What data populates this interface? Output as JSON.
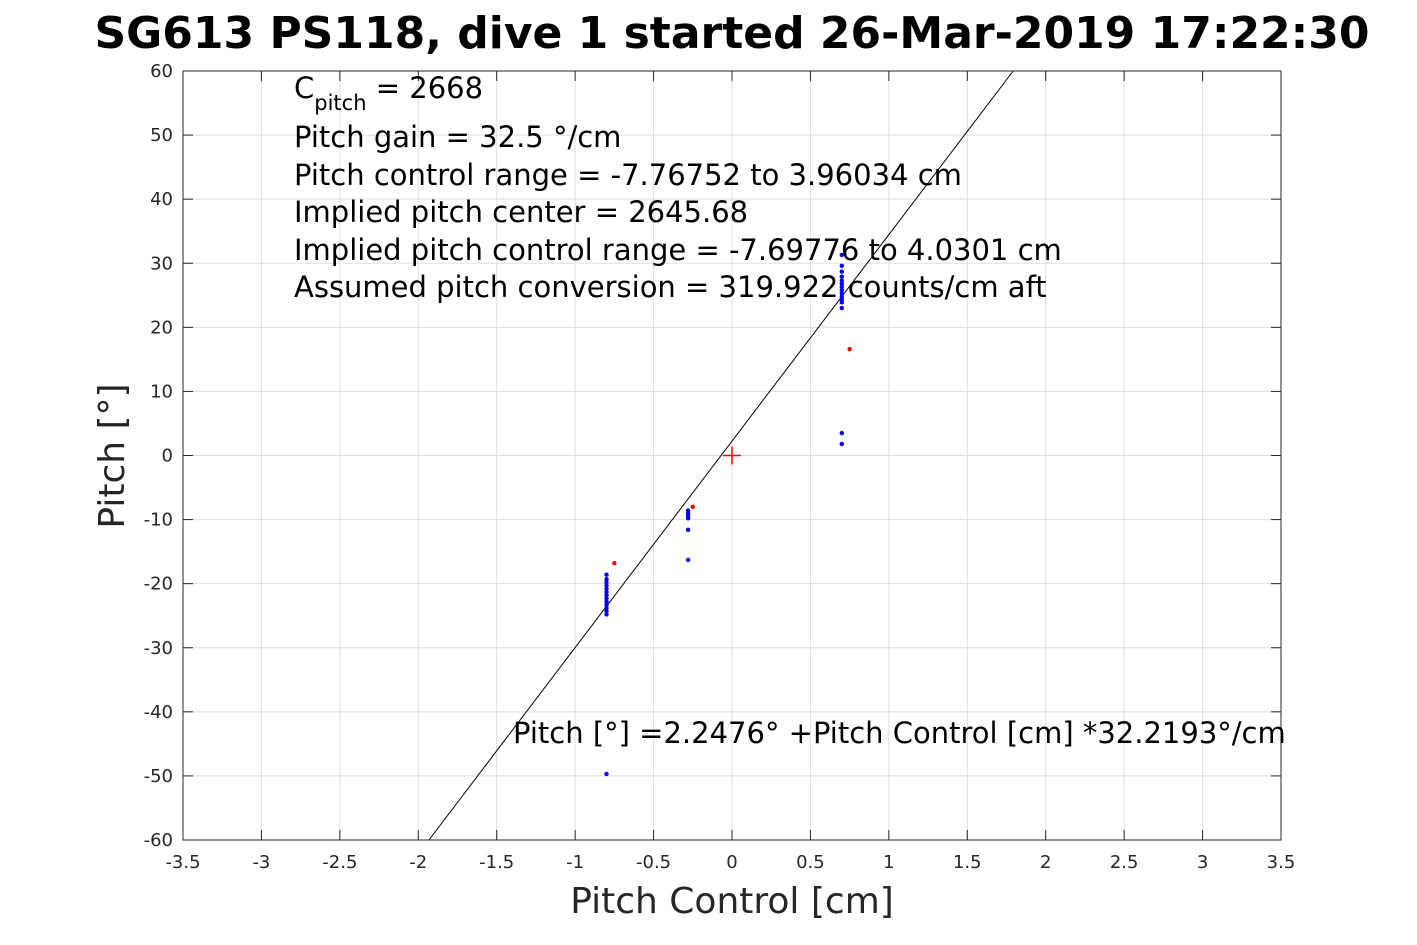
{
  "chart_data": {
    "type": "scatter",
    "title": "SG613 PS118, dive 1 started 26-Mar-2019 17:22:30",
    "xlabel": "Pitch Control [cm]",
    "ylabel": "Pitch [°]",
    "xlim": [
      -3.5,
      3.5
    ],
    "ylim": [
      -60,
      60
    ],
    "grid": true,
    "xticks": [
      -3.5,
      -3,
      -2.5,
      -2,
      -1.5,
      -1,
      -0.5,
      0,
      0.5,
      1,
      1.5,
      2,
      2.5,
      3,
      3.5
    ],
    "yticks": [
      -60,
      -50,
      -40,
      -30,
      -20,
      -10,
      0,
      10,
      20,
      30,
      40,
      50,
      60
    ],
    "annotations": {
      "cpitch_prefix": "C",
      "cpitch_sub": "pitch",
      "cpitch_value": " = 2668",
      "pitch_gain": "Pitch gain = 32.5 °/cm",
      "control_range": "Pitch control range = -7.76752 to 3.96034 cm",
      "implied_center": "Implied pitch center = 2645.68",
      "implied_range": "Implied pitch control range = -7.69776 to 4.0301 cm",
      "conversion": "Assumed pitch conversion = 319.922 counts/cm aft",
      "fit_equation": "Pitch [°] =2.2476° +Pitch Control [cm] *32.2193°/cm"
    },
    "fit_line": {
      "intercept": 2.2476,
      "slope": 32.2193,
      "color": "#000000"
    },
    "center_marker": {
      "x": 0,
      "y": 0,
      "color": "#ff0000"
    },
    "series": [
      {
        "color": "#0000ff",
        "points": [
          [
            -0.8,
            -18.6
          ],
          [
            -0.8,
            -19.3
          ],
          [
            -0.8,
            -19.8
          ],
          [
            -0.8,
            -20.3
          ],
          [
            -0.8,
            -20.8
          ],
          [
            -0.8,
            -21.3
          ],
          [
            -0.8,
            -21.8
          ],
          [
            -0.8,
            -22.3
          ],
          [
            -0.8,
            -22.8
          ],
          [
            -0.8,
            -23.3
          ],
          [
            -0.8,
            -23.8
          ],
          [
            -0.8,
            -24.3
          ],
          [
            -0.8,
            -24.8
          ],
          [
            -0.8,
            -49.7
          ],
          [
            -0.28,
            -8.6
          ],
          [
            -0.28,
            -9.0
          ],
          [
            -0.28,
            -9.4
          ],
          [
            -0.28,
            -9.8
          ],
          [
            -0.28,
            -11.6
          ],
          [
            -0.28,
            -16.3
          ],
          [
            0.7,
            31.3
          ],
          [
            0.7,
            29.6
          ],
          [
            0.7,
            28.7
          ],
          [
            0.7,
            27.9
          ],
          [
            0.7,
            27.3
          ],
          [
            0.7,
            26.8
          ],
          [
            0.7,
            26.3
          ],
          [
            0.7,
            25.8
          ],
          [
            0.7,
            25.3
          ],
          [
            0.7,
            24.8
          ],
          [
            0.7,
            24.3
          ],
          [
            0.7,
            23.9
          ],
          [
            0.7,
            23.0
          ],
          [
            0.7,
            3.5
          ],
          [
            0.7,
            1.8
          ]
        ]
      },
      {
        "color": "#ff0000",
        "points": [
          [
            -0.75,
            -16.8
          ],
          [
            -0.25,
            -8.0
          ],
          [
            0.75,
            16.6
          ]
        ]
      }
    ]
  }
}
